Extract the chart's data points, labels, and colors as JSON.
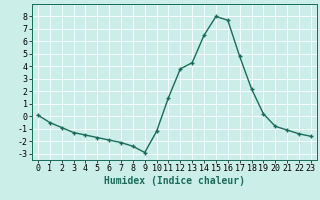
{
  "x": [
    0,
    1,
    2,
    3,
    4,
    5,
    6,
    7,
    8,
    9,
    10,
    11,
    12,
    13,
    14,
    15,
    16,
    17,
    18,
    19,
    20,
    21,
    22,
    23
  ],
  "y": [
    0.1,
    -0.5,
    -0.9,
    -1.3,
    -1.5,
    -1.7,
    -1.9,
    -2.1,
    -2.4,
    -2.9,
    -1.2,
    1.5,
    3.8,
    4.3,
    6.5,
    8.0,
    7.7,
    4.8,
    2.2,
    0.2,
    -0.8,
    -1.1,
    -1.4,
    -1.6
  ],
  "line_color": "#1a6b5a",
  "marker": "+",
  "marker_size": 3,
  "linewidth": 1.0,
  "markeredgewidth": 1.0,
  "xlabel": "Humidex (Indice chaleur)",
  "xlim": [
    -0.5,
    23.5
  ],
  "ylim": [
    -3.5,
    9.0
  ],
  "yticks": [
    -3,
    -2,
    -1,
    0,
    1,
    2,
    3,
    4,
    5,
    6,
    7,
    8
  ],
  "xticks": [
    0,
    1,
    2,
    3,
    4,
    5,
    6,
    7,
    8,
    9,
    10,
    11,
    12,
    13,
    14,
    15,
    16,
    17,
    18,
    19,
    20,
    21,
    22,
    23
  ],
  "bg_color": "#cceee8",
  "grid_color": "#ffffff",
  "grid_linewidth": 0.6,
  "label_fontsize": 7,
  "tick_fontsize": 6
}
